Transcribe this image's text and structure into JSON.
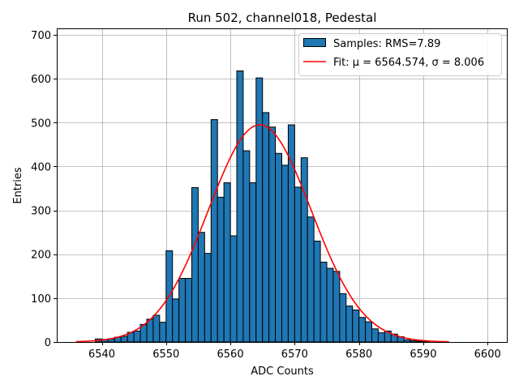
{
  "chart_data": {
    "type": "bar",
    "title": "Run 502, channel018, Pedestal",
    "xlabel": "ADC Counts",
    "ylabel": "Entries",
    "xlim": [
      6533,
      6603
    ],
    "ylim": [
      0,
      715
    ],
    "xticks": [
      6540,
      6550,
      6560,
      6570,
      6580,
      6590,
      6600
    ],
    "yticks": [
      0,
      100,
      200,
      300,
      400,
      500,
      600,
      700
    ],
    "grid": true,
    "legend_position": "top-right",
    "histogram": {
      "name": "Samples: RMS=7.89",
      "bin_width": 1,
      "bin_starts": [
        6539,
        6540,
        6541,
        6542,
        6543,
        6544,
        6545,
        6546,
        6547,
        6548,
        6549,
        6550,
        6551,
        6552,
        6553,
        6554,
        6555,
        6556,
        6557,
        6558,
        6559,
        6560,
        6561,
        6562,
        6563,
        6564,
        6565,
        6566,
        6567,
        6568,
        6569,
        6570,
        6571,
        6572,
        6573,
        6574,
        6575,
        6576,
        6577,
        6578,
        6579,
        6580,
        6581,
        6582,
        6583,
        6584,
        6585,
        6586,
        6587,
        6588,
        6589,
        6590
      ],
      "counts": [
        7,
        6,
        7,
        11,
        13,
        22,
        25,
        40,
        52,
        61,
        45,
        208,
        98,
        145,
        145,
        352,
        250,
        202,
        507,
        330,
        363,
        242,
        618,
        436,
        363,
        602,
        523,
        490,
        430,
        403,
        495,
        353,
        420,
        285,
        230,
        182,
        168,
        161,
        110,
        82,
        73,
        56,
        46,
        30,
        21,
        25,
        18,
        12,
        5,
        3,
        2,
        1
      ],
      "fill_color": "#1f77b4",
      "edge_color": "#000000"
    },
    "fit": {
      "name": "Fit: μ = 6564.574, σ = 8.006",
      "mu": 6564.574,
      "sigma": 8.006,
      "amplitude": 495,
      "x_range": [
        6536,
        6594
      ],
      "color": "#ff0000"
    }
  }
}
